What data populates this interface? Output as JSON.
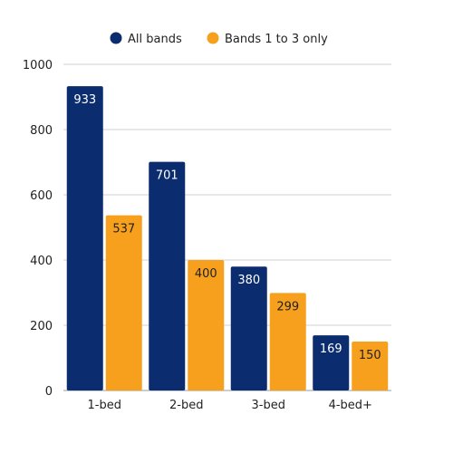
{
  "chart_data": {
    "type": "bar",
    "categories": [
      "1-bed",
      "2-bed",
      "3-bed",
      "4-bed+"
    ],
    "series": [
      {
        "name": "All bands",
        "color": "#0b2d6f",
        "label_color": "#ffffff",
        "values": [
          933,
          701,
          380,
          169
        ]
      },
      {
        "name": "Bands 1 to 3 only",
        "color": "#f7a01d",
        "label_color": "#222222",
        "values": [
          537,
          400,
          299,
          150
        ]
      }
    ],
    "ylim": [
      0,
      1000
    ],
    "yticks": [
      0,
      200,
      400,
      600,
      800,
      1000
    ],
    "grid": true,
    "legend_position": "top-center",
    "title": "",
    "xlabel": "",
    "ylabel": ""
  }
}
